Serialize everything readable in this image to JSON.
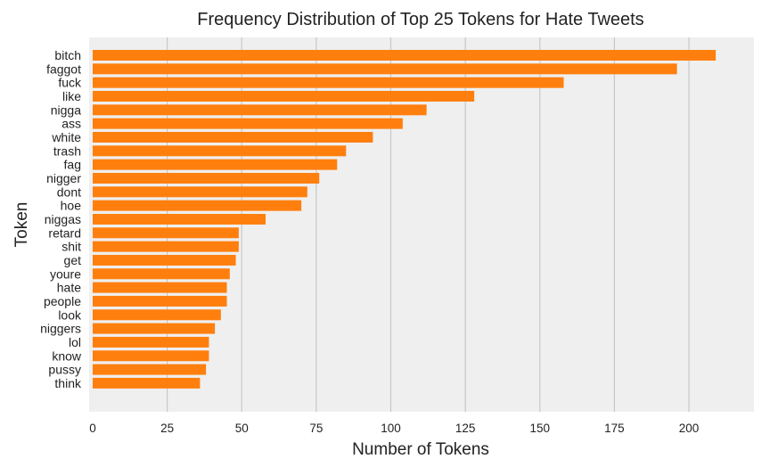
{
  "chart_data": {
    "type": "bar",
    "orientation": "horizontal",
    "title": "Frequency Distribution of Top 25 Tokens for Hate Tweets",
    "xlabel": "Number of Tokens",
    "ylabel": "Token",
    "xlim": [
      0,
      220
    ],
    "xticks": [
      0,
      25,
      50,
      75,
      100,
      125,
      150,
      175,
      200
    ],
    "grid": "vertical",
    "bar_color": "#ff7f0e",
    "background_color": "#efefef",
    "categories": [
      "bitch",
      "faggot",
      "fuck",
      "like",
      "nigga",
      "ass",
      "white",
      "trash",
      "fag",
      "nigger",
      "dont",
      "hoe",
      "niggas",
      "retard",
      "shit",
      "get",
      "youre",
      "hate",
      "people",
      "look",
      "niggers",
      "lol",
      "know",
      "pussy",
      "think"
    ],
    "values": [
      209,
      196,
      158,
      128,
      112,
      104,
      94,
      85,
      82,
      76,
      72,
      70,
      58,
      49,
      49,
      48,
      46,
      45,
      45,
      43,
      41,
      39,
      39,
      38,
      36
    ]
  }
}
